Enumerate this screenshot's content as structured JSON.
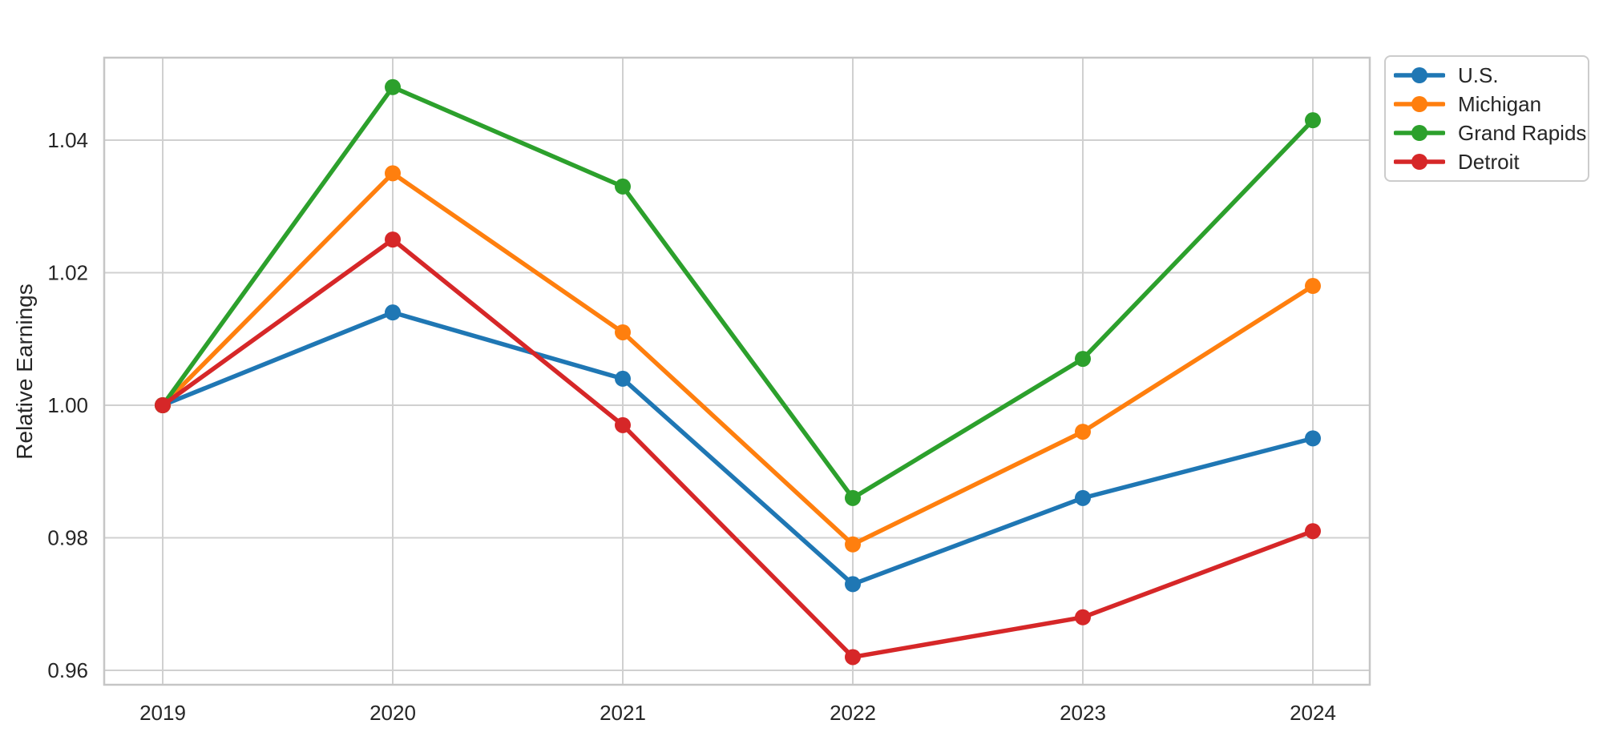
{
  "chart_data": {
    "type": "line",
    "title": "",
    "xlabel": "",
    "ylabel": "Relative Earnings",
    "categories": [
      2019,
      2020,
      2021,
      2022,
      2023,
      2024
    ],
    "x_tick_labels": [
      "2019",
      "2020",
      "2021",
      "2022",
      "2023",
      "2024"
    ],
    "y_ticks": [
      0.96,
      0.98,
      1.0,
      1.02,
      1.04
    ],
    "y_tick_labels": [
      "0.96",
      "0.98",
      "1.00",
      "1.02",
      "1.04"
    ],
    "ylim": [
      0.958,
      1.052
    ],
    "grid": true,
    "legend_position": "upper-right-outside",
    "marker": "circle",
    "series": [
      {
        "name": "U.S.",
        "color": "#1f77b4",
        "values": [
          1.0,
          1.014,
          1.004,
          0.973,
          0.986,
          0.995
        ]
      },
      {
        "name": "Michigan",
        "color": "#ff7f0e",
        "values": [
          1.0,
          1.035,
          1.011,
          0.979,
          0.996,
          1.018
        ]
      },
      {
        "name": "Grand Rapids",
        "color": "#2ca02c",
        "values": [
          1.0,
          1.048,
          1.033,
          0.986,
          1.007,
          1.043
        ]
      },
      {
        "name": "Detroit",
        "color": "#d62728",
        "values": [
          1.0,
          1.025,
          0.997,
          0.962,
          0.968,
          0.981
        ]
      }
    ]
  },
  "colors": {
    "background": "#ffffff",
    "gridline": "#d0d0d0",
    "plot_border": "#c6c6c6",
    "text": "#262626",
    "legend_border": "#cccccc"
  }
}
